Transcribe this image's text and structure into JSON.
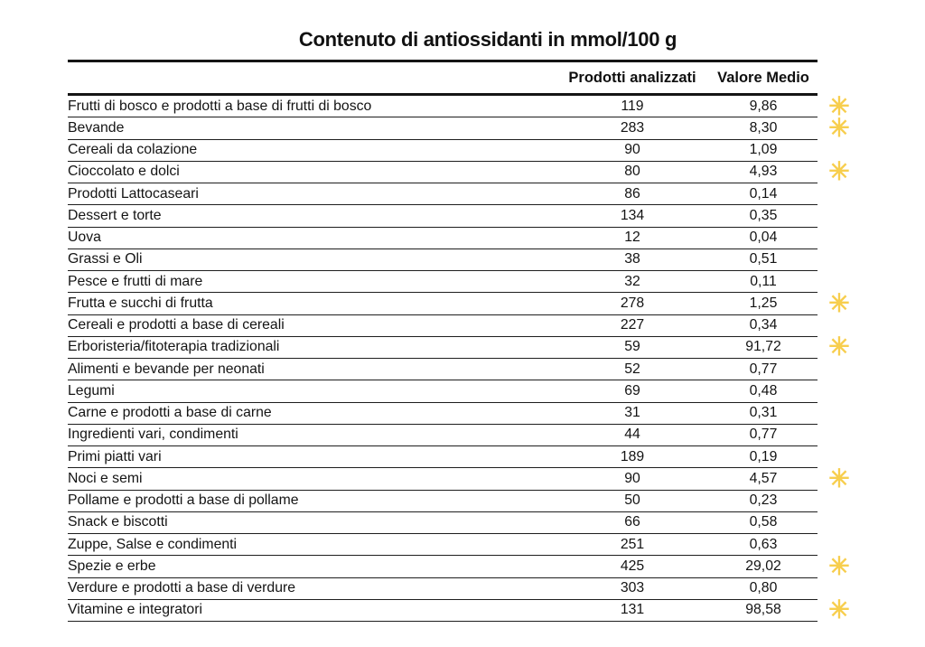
{
  "chart_data": {
    "type": "table",
    "title": "Contenuto di antiossidanti in mmol/100 g",
    "columns": [
      "",
      "Prodotti analizzati",
      "Valore Medio"
    ],
    "rows": [
      {
        "label": "Frutti di bosco e prodotti a base di frutti di bosco",
        "prodotti_analizzati": "119",
        "valore_medio": "9,86",
        "starred": true
      },
      {
        "label": "Bevande",
        "prodotti_analizzati": "283",
        "valore_medio": "8,30",
        "starred": true
      },
      {
        "label": "Cereali da colazione",
        "prodotti_analizzati": "90",
        "valore_medio": "1,09",
        "starred": false
      },
      {
        "label": "Cioccolato e dolci",
        "prodotti_analizzati": "80",
        "valore_medio": "4,93",
        "starred": true
      },
      {
        "label": "Prodotti Lattocaseari",
        "prodotti_analizzati": "86",
        "valore_medio": "0,14",
        "starred": false
      },
      {
        "label": "Dessert e torte",
        "prodotti_analizzati": "134",
        "valore_medio": "0,35",
        "starred": false
      },
      {
        "label": "Uova",
        "prodotti_analizzati": "12",
        "valore_medio": "0,04",
        "starred": false
      },
      {
        "label": "Grassi e Oli",
        "prodotti_analizzati": "38",
        "valore_medio": "0,51",
        "starred": false
      },
      {
        "label": "Pesce e frutti di mare",
        "prodotti_analizzati": "32",
        "valore_medio": "0,11",
        "starred": false
      },
      {
        "label": "Frutta e succhi di frutta",
        "prodotti_analizzati": "278",
        "valore_medio": "1,25",
        "starred": true
      },
      {
        "label": "Cereali e prodotti a base di cereali",
        "prodotti_analizzati": "227",
        "valore_medio": "0,34",
        "starred": false
      },
      {
        "label": "Erboristeria/fitoterapia tradizionali",
        "prodotti_analizzati": "59",
        "valore_medio": "91,72",
        "starred": true
      },
      {
        "label": "Alimenti e bevande per neonati",
        "prodotti_analizzati": "52",
        "valore_medio": "0,77",
        "starred": false
      },
      {
        "label": "Legumi",
        "prodotti_analizzati": "69",
        "valore_medio": "0,48",
        "starred": false
      },
      {
        "label": "Carne e prodotti a base di carne",
        "prodotti_analizzati": "31",
        "valore_medio": "0,31",
        "starred": false
      },
      {
        "label": "Ingredienti vari, condimenti",
        "prodotti_analizzati": "44",
        "valore_medio": "0,77",
        "starred": false
      },
      {
        "label": "Primi piatti vari",
        "prodotti_analizzati": "189",
        "valore_medio": "0,19",
        "starred": false
      },
      {
        "label": "Noci e semi",
        "prodotti_analizzati": "90",
        "valore_medio": "4,57",
        "starred": true
      },
      {
        "label": "Pollame e prodotti a base di pollame",
        "prodotti_analizzati": "50",
        "valore_medio": "0,23",
        "starred": false
      },
      {
        "label": "Snack e biscotti",
        "prodotti_analizzati": "66",
        "valore_medio": "0,58",
        "starred": false
      },
      {
        "label": "Zuppe, Salse e condimenti",
        "prodotti_analizzati": "251",
        "valore_medio": "0,63",
        "starred": false
      },
      {
        "label": "Spezie e erbe",
        "prodotti_analizzati": "425",
        "valore_medio": "29,02",
        "starred": true
      },
      {
        "label": "Verdure e prodotti  a base di verdure",
        "prodotti_analizzati": "303",
        "valore_medio": "0,80",
        "starred": false
      },
      {
        "label": "Vitamine e integratori",
        "prodotti_analizzati": "131",
        "valore_medio": "98,58",
        "starred": true
      }
    ]
  },
  "icons": {
    "star_glyph": "✳",
    "star_color": "#F7CE4E"
  }
}
